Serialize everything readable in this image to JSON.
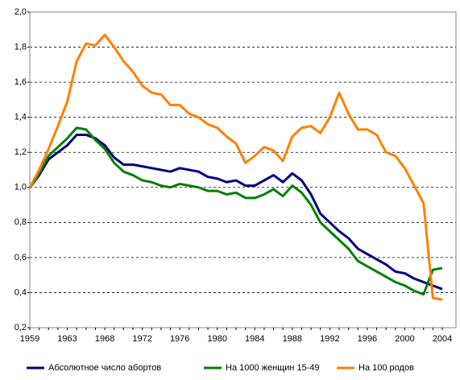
{
  "chart_data": {
    "type": "line",
    "categories": [
      "1959",
      null,
      null,
      null,
      "1963",
      null,
      null,
      null,
      "1968",
      null,
      null,
      null,
      "1972",
      null,
      null,
      null,
      "1976",
      null,
      null,
      null,
      "1980",
      null,
      null,
      null,
      "1984",
      null,
      null,
      null,
      "1988",
      null,
      null,
      null,
      "1992",
      null,
      null,
      null,
      "1996",
      null,
      null,
      null,
      "2000",
      null,
      null,
      null,
      "2004"
    ],
    "series": [
      {
        "name": "Абсолютное число абортов",
        "color": "#000080",
        "values": [
          1.0,
          1.07,
          1.16,
          1.2,
          1.24,
          1.3,
          1.3,
          1.28,
          1.24,
          1.17,
          1.13,
          1.13,
          1.12,
          1.11,
          1.1,
          1.09,
          1.11,
          1.1,
          1.09,
          1.06,
          1.05,
          1.03,
          1.04,
          1.01,
          1.01,
          1.04,
          1.07,
          1.03,
          1.08,
          1.04,
          0.96,
          0.85,
          0.8,
          0.75,
          0.71,
          0.65,
          0.62,
          0.59,
          0.56,
          0.52,
          0.51,
          0.48,
          0.46,
          0.44,
          0.42
        ]
      },
      {
        "name": "На 1000 женщин 15-49",
        "color": "#008000",
        "values": [
          1.0,
          1.08,
          1.18,
          1.23,
          1.28,
          1.34,
          1.33,
          1.27,
          1.22,
          1.14,
          1.09,
          1.07,
          1.04,
          1.03,
          1.01,
          1.0,
          1.02,
          1.01,
          1.0,
          0.98,
          0.98,
          0.96,
          0.97,
          0.94,
          0.94,
          0.96,
          0.99,
          0.95,
          1.01,
          0.97,
          0.9,
          0.8,
          0.75,
          0.7,
          0.65,
          0.58,
          0.55,
          0.52,
          0.49,
          0.46,
          0.44,
          0.41,
          0.39,
          0.53,
          0.54
        ]
      },
      {
        "name": "На 100 родов",
        "color": "#ff8000",
        "values": [
          1.0,
          1.1,
          1.22,
          1.35,
          1.49,
          1.72,
          1.82,
          1.81,
          1.87,
          1.8,
          1.72,
          1.66,
          1.58,
          1.54,
          1.53,
          1.47,
          1.47,
          1.42,
          1.4,
          1.36,
          1.34,
          1.29,
          1.25,
          1.14,
          1.18,
          1.23,
          1.21,
          1.15,
          1.29,
          1.34,
          1.35,
          1.31,
          1.4,
          1.54,
          1.42,
          1.33,
          1.33,
          1.3,
          1.2,
          1.18,
          1.11,
          1.01,
          0.91,
          0.37,
          0.36
        ]
      }
    ],
    "ylim": [
      0.2,
      2.0
    ],
    "yticks": [
      {
        "value": 0.2,
        "label": "0,2"
      },
      {
        "value": 0.4,
        "label": "0,4"
      },
      {
        "value": 0.6,
        "label": "0,6"
      },
      {
        "value": 0.8,
        "label": "0,8"
      },
      {
        "value": 1.0,
        "label": "1,0"
      },
      {
        "value": 1.2,
        "label": "1,2"
      },
      {
        "value": 1.4,
        "label": "1,4"
      },
      {
        "value": 1.6,
        "label": "1,6"
      },
      {
        "value": 1.8,
        "label": "1,8"
      },
      {
        "value": 2.0,
        "label": "2,0"
      }
    ],
    "grid": true,
    "legend": "bottom"
  }
}
